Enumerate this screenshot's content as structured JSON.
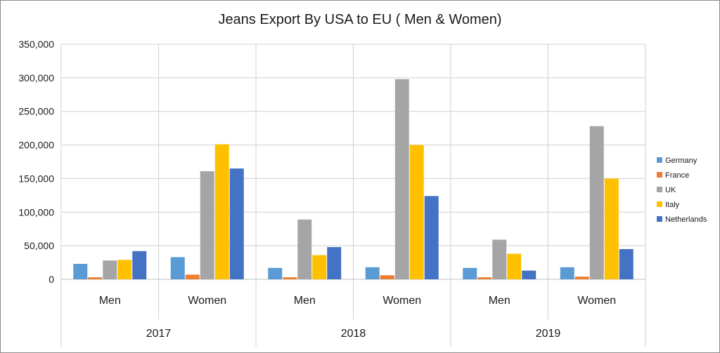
{
  "chart_data": {
    "type": "bar",
    "title": "Jeans Export By USA to EU ( Men & Women)",
    "xlabel": "",
    "ylabel": "",
    "ylim": [
      0,
      350000
    ],
    "yticks": [
      0,
      50000,
      100000,
      150000,
      200000,
      250000,
      300000,
      350000
    ],
    "ytick_labels": [
      "0",
      "50,000",
      "100,000",
      "150,000",
      "200,000",
      "250,000",
      "300,000",
      "350,000"
    ],
    "groups": [
      "2017",
      "2018",
      "2019"
    ],
    "categories": [
      "Men",
      "Women",
      "Men",
      "Women",
      "Men",
      "Women"
    ],
    "grid": true,
    "legend_position": "right",
    "series": [
      {
        "name": "Germany",
        "color": "#5b9bd5",
        "values": [
          23000,
          33000,
          17000,
          18000,
          17000,
          18000
        ]
      },
      {
        "name": "France",
        "color": "#ed7d31",
        "values": [
          3000,
          7000,
          3000,
          6000,
          3000,
          4000
        ]
      },
      {
        "name": "UK",
        "color": "#a5a5a5",
        "values": [
          28000,
          161000,
          89000,
          298000,
          59000,
          228000
        ]
      },
      {
        "name": "Italy",
        "color": "#ffc000",
        "values": [
          29000,
          201000,
          36000,
          200000,
          38000,
          150000
        ]
      },
      {
        "name": "Netherlands",
        "color": "#4472c4",
        "values": [
          42000,
          165000,
          48000,
          124000,
          13000,
          45000
        ]
      }
    ]
  }
}
